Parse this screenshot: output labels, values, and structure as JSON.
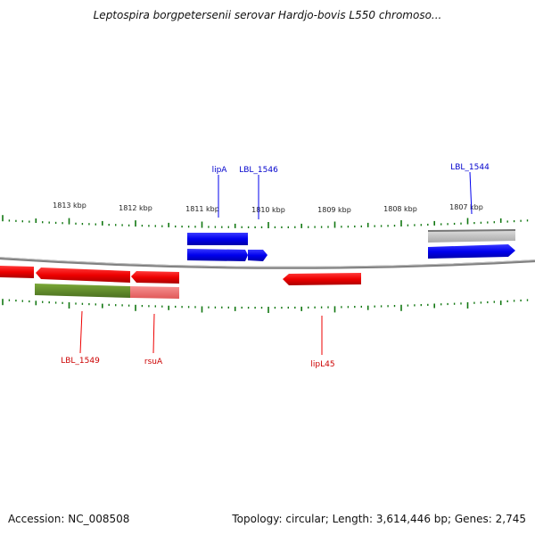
{
  "title": "Leptospira borgpetersenii serovar Hardjo-bovis L550 chromoso...",
  "ruler": {
    "labels": [
      "1813 kbp",
      "1812 kbp",
      "1811 kbp",
      "1810 kbp",
      "1809 kbp",
      "1808 kbp",
      "1807 kbp"
    ]
  },
  "genes": {
    "lipA": "lipA",
    "lbl1546": "LBL_1546",
    "lbl1544": "LBL_1544",
    "lbl1549": "LBL_1549",
    "rsua": "rsuA",
    "lipl45": "lipL45"
  },
  "colors": {
    "forward_cds": "#0000ee",
    "reverse_cds": "#ee0000",
    "tick": "#117711",
    "backbone": "#808080",
    "gray_feature": "#bbbbbb",
    "olive_feature": "#5f8a28",
    "pink_feature": "#f07070"
  },
  "footer": {
    "accession": "Accession: NC_008508",
    "topology": "Topology: circular; Length: 3,614,446 bp; Genes: 2,745"
  }
}
